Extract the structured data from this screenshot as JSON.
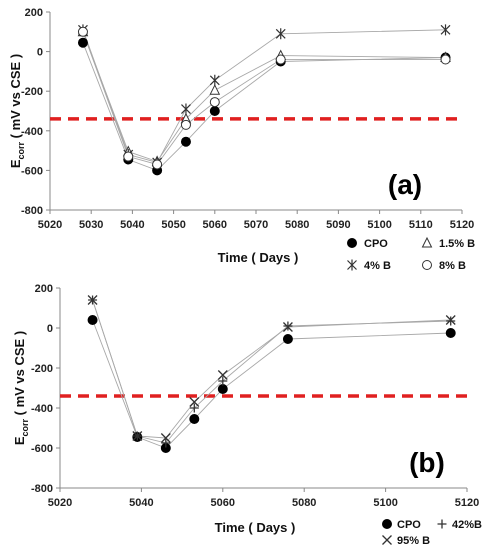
{
  "chart_data": [
    {
      "type": "scatter",
      "panel_label": "(a)",
      "xlabel": "Time  ( Days )",
      "ylabel_main": "E",
      "ylabel_sub": "corr",
      "ylabel_rest": "  ( mV vs CSE )",
      "xlim": [
        5020,
        5120
      ],
      "ylim": [
        -800,
        200
      ],
      "xticks": [
        5020,
        5030,
        5040,
        5050,
        5060,
        5070,
        5080,
        5090,
        5100,
        5110,
        5120
      ],
      "yticks": [
        200,
        0,
        -200,
        -400,
        -600,
        -800
      ],
      "threshold": -340,
      "threshold_color": "#e02020",
      "grid": false,
      "legend_position": "below",
      "series": [
        {
          "name": "CPO",
          "marker": "filled-circle",
          "x": [
            5028,
            5039,
            5046,
            5053,
            5060,
            5076,
            5116
          ],
          "y": [
            45,
            -545,
            -600,
            -455,
            -300,
            -50,
            -30
          ]
        },
        {
          "name": "1.5% B",
          "marker": "triangle",
          "x": [
            5028,
            5039,
            5046,
            5053,
            5060,
            5076,
            5116
          ],
          "y": [
            100,
            -505,
            -555,
            -340,
            -195,
            -20,
            -30
          ]
        },
        {
          "name": "4% B",
          "marker": "asterisk",
          "x": [
            5028,
            5039,
            5046,
            5053,
            5060,
            5076,
            5116
          ],
          "y": [
            110,
            -520,
            -560,
            -290,
            -145,
            90,
            110
          ]
        },
        {
          "name": "8% B",
          "marker": "open-circle",
          "x": [
            5028,
            5039,
            5046,
            5053,
            5060,
            5076,
            5116
          ],
          "y": [
            100,
            -530,
            -570,
            -370,
            -255,
            -40,
            -40
          ]
        }
      ]
    },
    {
      "type": "scatter",
      "panel_label": "(b)",
      "xlabel": "Time  ( Days )",
      "ylabel_main": "E",
      "ylabel_sub": "corr",
      "ylabel_rest": "  ( mV vs CSE )",
      "xlim": [
        5020,
        5120
      ],
      "ylim": [
        -800,
        200
      ],
      "xticks": [
        5020,
        5040,
        5060,
        5080,
        5100,
        5120
      ],
      "yticks": [
        200,
        0,
        -200,
        -400,
        -600,
        -800
      ],
      "threshold": -340,
      "threshold_color": "#e02020",
      "grid": false,
      "legend_position": "below",
      "series": [
        {
          "name": "CPO",
          "marker": "filled-circle",
          "x": [
            5028,
            5039,
            5046,
            5053,
            5060,
            5076,
            5116
          ],
          "y": [
            40,
            -545,
            -600,
            -455,
            -305,
            -55,
            -25
          ]
        },
        {
          "name": "42%B",
          "marker": "plus",
          "x": [
            5028,
            5039,
            5046,
            5053,
            5060,
            5076,
            5116
          ],
          "y": [
            140,
            -540,
            -575,
            -400,
            -265,
            10,
            35
          ]
        },
        {
          "name": "95% B",
          "marker": "cross",
          "x": [
            5028,
            5039,
            5046,
            5053,
            5060,
            5076,
            5116
          ],
          "y": [
            140,
            -540,
            -550,
            -370,
            -235,
            5,
            40
          ]
        }
      ]
    }
  ]
}
